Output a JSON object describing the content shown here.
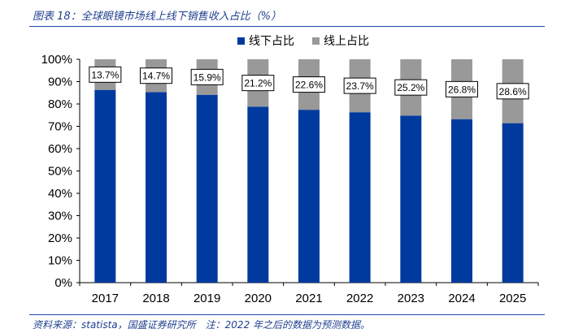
{
  "header": {
    "title": "图表 18：全球眼镜市场线上线下销售收入占比（%）"
  },
  "footer": {
    "source": "资料来源：statista，国盛证券研究所　注：2022 年之后的数据为预测数据。"
  },
  "chart_data": {
    "type": "bar",
    "stacked": true,
    "categories": [
      "2017",
      "2018",
      "2019",
      "2020",
      "2021",
      "2022",
      "2023",
      "2024",
      "2025"
    ],
    "series": [
      {
        "name": "线下占比",
        "color": "#003a9e",
        "values": [
          86.3,
          85.3,
          84.1,
          78.8,
          77.4,
          76.3,
          74.8,
          73.2,
          71.4
        ]
      },
      {
        "name": "线上占比",
        "color": "#999999",
        "values": [
          13.7,
          14.7,
          15.9,
          21.2,
          22.6,
          23.7,
          25.2,
          26.8,
          28.6
        ]
      }
    ],
    "data_labels": [
      "13.7%",
      "14.7%",
      "15.9%",
      "21.2%",
      "22.6%",
      "23.7%",
      "25.2%",
      "26.8%",
      "28.6%"
    ],
    "y_ticks": [
      "0%",
      "10%",
      "20%",
      "30%",
      "40%",
      "50%",
      "60%",
      "70%",
      "80%",
      "90%",
      "100%"
    ],
    "ylim": [
      0,
      100
    ],
    "grid": false,
    "legend_position": "top-center"
  }
}
